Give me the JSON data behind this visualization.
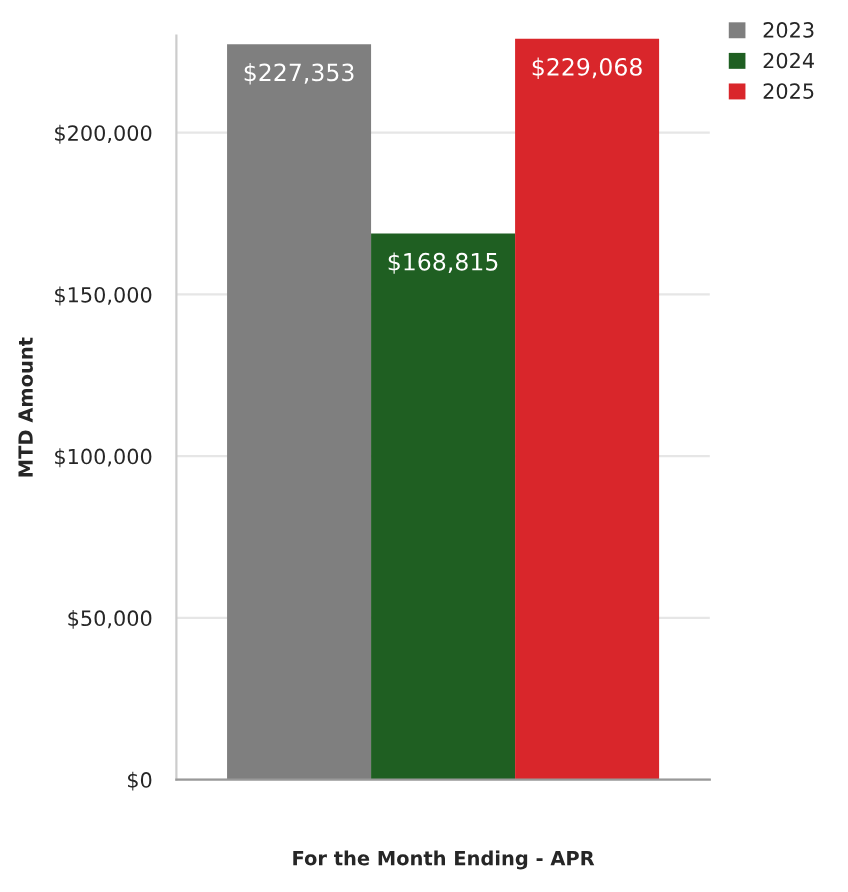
{
  "chart_data": {
    "type": "bar",
    "xlabel": "For the Month Ending - APR",
    "ylabel": "MTD Amount",
    "categories": [
      null
    ],
    "series": [
      {
        "name": "2023",
        "color": "#7f7f7f",
        "values": [
          227353
        ],
        "value_labels": [
          "$227,353"
        ]
      },
      {
        "name": "2024",
        "color": "#1f5f22",
        "values": [
          168815
        ],
        "value_labels": [
          "$168,815"
        ]
      },
      {
        "name": "2025",
        "color": "#d9262b",
        "values": [
          229068
        ],
        "value_labels": [
          "$229,068"
        ]
      }
    ],
    "ylim": [
      0,
      230000
    ],
    "yticks": [
      {
        "value": 0,
        "label": "$0"
      },
      {
        "value": 50000,
        "label": "$50,000"
      },
      {
        "value": 100000,
        "label": "$100,000"
      },
      {
        "value": 150000,
        "label": "$150,000"
      },
      {
        "value": 200000,
        "label": "$200,000"
      }
    ],
    "grid": "y",
    "legend": "top right"
  }
}
